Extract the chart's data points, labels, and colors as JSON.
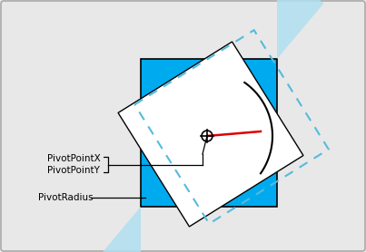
{
  "fig_width": 4.03,
  "fig_height": 2.78,
  "dpi": 100,
  "bg_color": "#e8e8e8",
  "border_color": "#aaaaaa",
  "cyan_color": "#00aaee",
  "cyan_light": "#b0dff0",
  "dashed_cyan": "#55bbdd",
  "white_rect_color": "#ffffff",
  "red_line_color": "#dd0000",
  "black": "#000000",
  "label_pivotpointx": "PivotPointX",
  "label_pivotpointy": "PivotPointY",
  "label_pivotradius": "PivotRadius",
  "font_size": 7.5
}
